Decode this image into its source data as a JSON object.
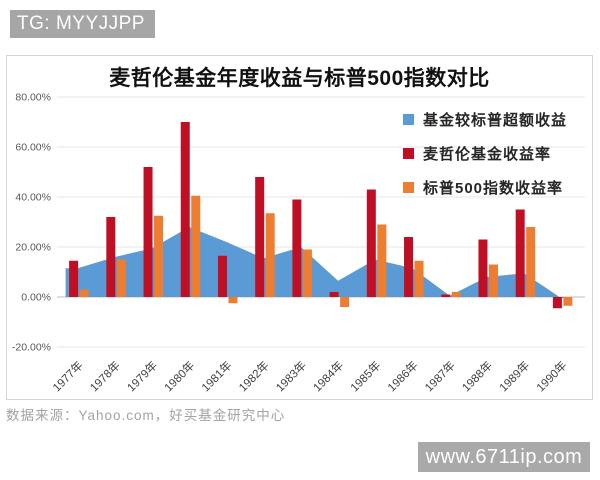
{
  "page": {
    "top_badge": "TG: MYYJJPP",
    "bottom_badge": "www.6711ip.com",
    "footer_source": "数据来源：Yahoo.com，好买基金研究中心"
  },
  "colors": {
    "excess_area_blue": "#5b9bd5",
    "magellan_red": "#c00f24",
    "sp500_orange": "#ed7d31",
    "gridline": "#e4e4e4",
    "axis_line": "#bcbcbc",
    "tick_label": "#595959",
    "badge_gray": "#a6a6a6"
  },
  "chart_data": {
    "type": "combo-bar-area",
    "title": "麦哲伦基金年度收益与标普500指数对比",
    "categories": [
      "1977年",
      "1978年",
      "1979年",
      "1980年",
      "1981年",
      "1982年",
      "1983年",
      "1984年",
      "1985年",
      "1986年",
      "1987年",
      "1988年",
      "1989年",
      "1990年"
    ],
    "series": [
      {
        "name": "基金较标普超额收益",
        "type": "area",
        "color": "#5b9bd5",
        "values": [
          11.5,
          16,
          19.5,
          28,
          22,
          15.5,
          20,
          6.5,
          15,
          11.5,
          0.5,
          8,
          9.5,
          -0.5
        ]
      },
      {
        "name": "麦哲伦基金收益率",
        "type": "bar",
        "color": "#c00f24",
        "values": [
          14.5,
          32,
          52,
          70,
          16.5,
          48,
          39,
          2,
          43,
          24,
          1,
          23,
          35,
          -4.5
        ]
      },
      {
        "name": "标普500指数收益率",
        "type": "bar",
        "color": "#ed7d31",
        "values": [
          3,
          15,
          32.5,
          40.5,
          -2.5,
          33.5,
          19,
          -4,
          29,
          14.5,
          2,
          13,
          28,
          -3.5
        ]
      }
    ],
    "ylabel": "",
    "xlabel": "",
    "ylim": [
      -20,
      80
    ],
    "ytick_step": 20,
    "ytick_labels": [
      "80.00%",
      "60.00%",
      "40.00%",
      "20.00%",
      "0.00%",
      "-20.00%"
    ],
    "grid": true,
    "legend_position": "right-top",
    "x_labels_rotation_deg": -45
  }
}
